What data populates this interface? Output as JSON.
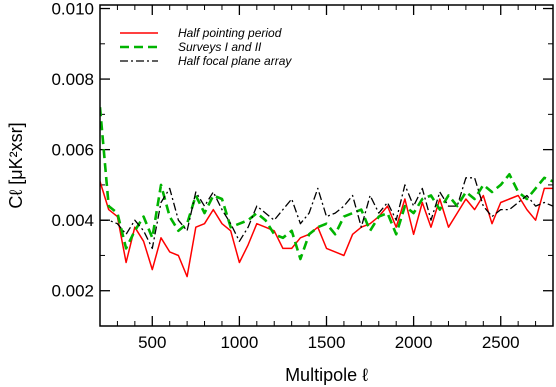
{
  "chart_data": {
    "type": "line",
    "xlabel": "Multipole ℓ",
    "ylabel": "Cℓ [μK²xsr]",
    "xlim": [
      200,
      2800
    ],
    "ylim": [
      0.001,
      0.0101
    ],
    "x_ticks": [
      500,
      1000,
      1500,
      2000,
      2500
    ],
    "x_tick_labels": [
      "500",
      "1000",
      "1500",
      "2000",
      "2500"
    ],
    "y_ticks": [
      0.002,
      0.004,
      0.006,
      0.008,
      0.01
    ],
    "y_tick_labels": [
      "0.002",
      "0.004",
      "0.006",
      "0.008",
      "0.010"
    ],
    "grid": false,
    "legend_position": "top-left",
    "series": [
      {
        "name": "Half pointing period",
        "color": "#ff0000",
        "style": "solid",
        "x": [
          200,
          250,
          300,
          350,
          400,
          450,
          500,
          550,
          600,
          650,
          700,
          750,
          800,
          850,
          900,
          950,
          1000,
          1050,
          1100,
          1150,
          1200,
          1250,
          1300,
          1350,
          1400,
          1450,
          1500,
          1550,
          1600,
          1650,
          1700,
          1750,
          1800,
          1850,
          1900,
          1950,
          2000,
          2050,
          2100,
          2150,
          2200,
          2250,
          2300,
          2350,
          2400,
          2450,
          2500,
          2550,
          2600,
          2650,
          2700,
          2750,
          2800
        ],
        "values": [
          0.0051,
          0.0043,
          0.0041,
          0.0028,
          0.0038,
          0.0034,
          0.0026,
          0.0035,
          0.0031,
          0.003,
          0.0024,
          0.0038,
          0.0039,
          0.0043,
          0.0039,
          0.0037,
          0.0028,
          0.0033,
          0.0039,
          0.0038,
          0.0037,
          0.0032,
          0.0032,
          0.0035,
          0.0036,
          0.0038,
          0.0032,
          0.0031,
          0.003,
          0.0036,
          0.0038,
          0.0039,
          0.0041,
          0.0044,
          0.0038,
          0.0046,
          0.0036,
          0.0045,
          0.0038,
          0.0046,
          0.0038,
          0.0042,
          0.0046,
          0.0043,
          0.0047,
          0.0039,
          0.0045,
          0.0046,
          0.0047,
          0.0043,
          0.004,
          0.0049,
          0.0049
        ]
      },
      {
        "name": "Surveys I and II",
        "color": "#00b400",
        "style": "dashed",
        "x": [
          200,
          250,
          300,
          350,
          400,
          450,
          500,
          550,
          600,
          650,
          700,
          750,
          800,
          850,
          900,
          950,
          1000,
          1050,
          1100,
          1150,
          1200,
          1250,
          1300,
          1350,
          1400,
          1450,
          1500,
          1550,
          1600,
          1650,
          1700,
          1750,
          1800,
          1850,
          1900,
          1950,
          2000,
          2050,
          2100,
          2150,
          2200,
          2250,
          2300,
          2350,
          2400,
          2450,
          2500,
          2550,
          2600,
          2650,
          2700,
          2750,
          2800
        ],
        "values": [
          0.0072,
          0.0044,
          0.0042,
          0.0032,
          0.0037,
          0.0041,
          0.0035,
          0.005,
          0.0041,
          0.0037,
          0.0039,
          0.0047,
          0.0042,
          0.0047,
          0.0046,
          0.0038,
          0.0039,
          0.004,
          0.0042,
          0.004,
          0.0036,
          0.0035,
          0.0037,
          0.0029,
          0.0036,
          0.0038,
          0.0039,
          0.0036,
          0.0041,
          0.0042,
          0.0043,
          0.0037,
          0.0041,
          0.0042,
          0.0036,
          0.0044,
          0.0042,
          0.0046,
          0.0047,
          0.0043,
          0.0047,
          0.0044,
          0.0048,
          0.0046,
          0.005,
          0.0048,
          0.005,
          0.0053,
          0.0048,
          0.0046,
          0.0049,
          0.0052,
          0.0051
        ]
      },
      {
        "name": "Half focal plane array",
        "color": "#000000",
        "style": "dashdot",
        "x": [
          200,
          250,
          300,
          350,
          400,
          450,
          500,
          550,
          600,
          650,
          700,
          750,
          800,
          850,
          900,
          950,
          1000,
          1050,
          1100,
          1150,
          1200,
          1250,
          1300,
          1350,
          1400,
          1450,
          1500,
          1550,
          1600,
          1650,
          1700,
          1750,
          1800,
          1850,
          1900,
          1950,
          2000,
          2050,
          2100,
          2150,
          2200,
          2250,
          2300,
          2350,
          2400,
          2450,
          2500,
          2550,
          2600,
          2650,
          2700,
          2750,
          2800
        ],
        "values": [
          0.004,
          0.004,
          0.0039,
          0.0036,
          0.004,
          0.0037,
          0.0032,
          0.0045,
          0.0049,
          0.004,
          0.0037,
          0.0048,
          0.0044,
          0.0048,
          0.0043,
          0.0039,
          0.0034,
          0.0038,
          0.0044,
          0.0042,
          0.004,
          0.0043,
          0.0046,
          0.0039,
          0.0042,
          0.0049,
          0.0041,
          0.0042,
          0.0044,
          0.0047,
          0.0038,
          0.0047,
          0.0042,
          0.0045,
          0.004,
          0.005,
          0.0044,
          0.0049,
          0.004,
          0.0048,
          0.0044,
          0.0044,
          0.0052,
          0.0052,
          0.0044,
          0.0041,
          0.0043,
          0.0043,
          0.0045,
          0.0047,
          0.0044,
          0.0045,
          0.0044
        ]
      }
    ]
  }
}
